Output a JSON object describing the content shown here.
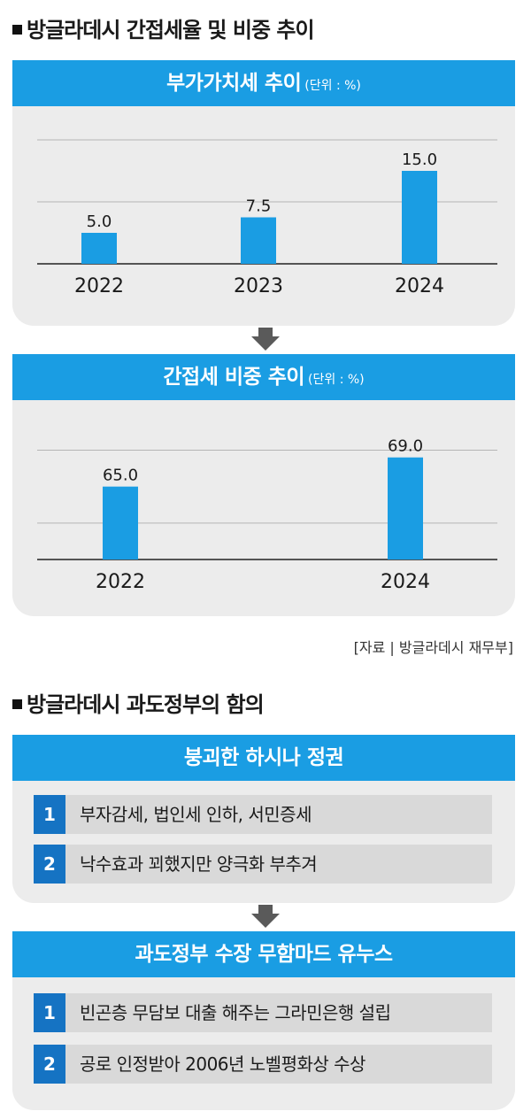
{
  "section1": {
    "title": "방글라데시 간접세율 및 비중 추이"
  },
  "chart_data": [
    {
      "type": "bar",
      "title": "부가가치세 추이",
      "unit": "(단위 : %)",
      "categories": [
        "2022",
        "2023",
        "2024"
      ],
      "values": [
        5.0,
        7.5,
        15.0
      ],
      "labels": [
        "5.0",
        "7.5",
        "15.0"
      ],
      "ylim": [
        0,
        20
      ],
      "grid": true,
      "color": "#1a9de3"
    },
    {
      "type": "bar",
      "title": "간접세 비중 추이",
      "unit": "(단위 : %)",
      "categories": [
        "2022",
        "2024"
      ],
      "values": [
        65.0,
        69.0
      ],
      "labels": [
        "65.0",
        "69.0"
      ],
      "grid": true,
      "color": "#1a9de3"
    }
  ],
  "source": "[자료 | 방글라데시 재무부]",
  "section2": {
    "title": "방글라데시 과도정부의 함의",
    "box1": {
      "header": "붕괴한 하시나 정권",
      "items": [
        {
          "num": "1",
          "text": "부자감세, 법인세 인하, 서민증세"
        },
        {
          "num": "2",
          "text": "낙수효과 꾀했지만 양극화 부추겨"
        }
      ]
    },
    "box2": {
      "header": "과도정부 수장 무함마드 유누스",
      "items": [
        {
          "num": "1",
          "text": "빈곤층 무담보 대출 해주는 그라민은행 설립"
        },
        {
          "num": "2",
          "text": "공로 인정받아 2006년 노벨평화상 수상"
        }
      ]
    }
  },
  "colors": {
    "accent": "#1a9de3",
    "number_box": "#1573c3",
    "panel": "#ececec",
    "arrow": "#5a5a5a"
  }
}
